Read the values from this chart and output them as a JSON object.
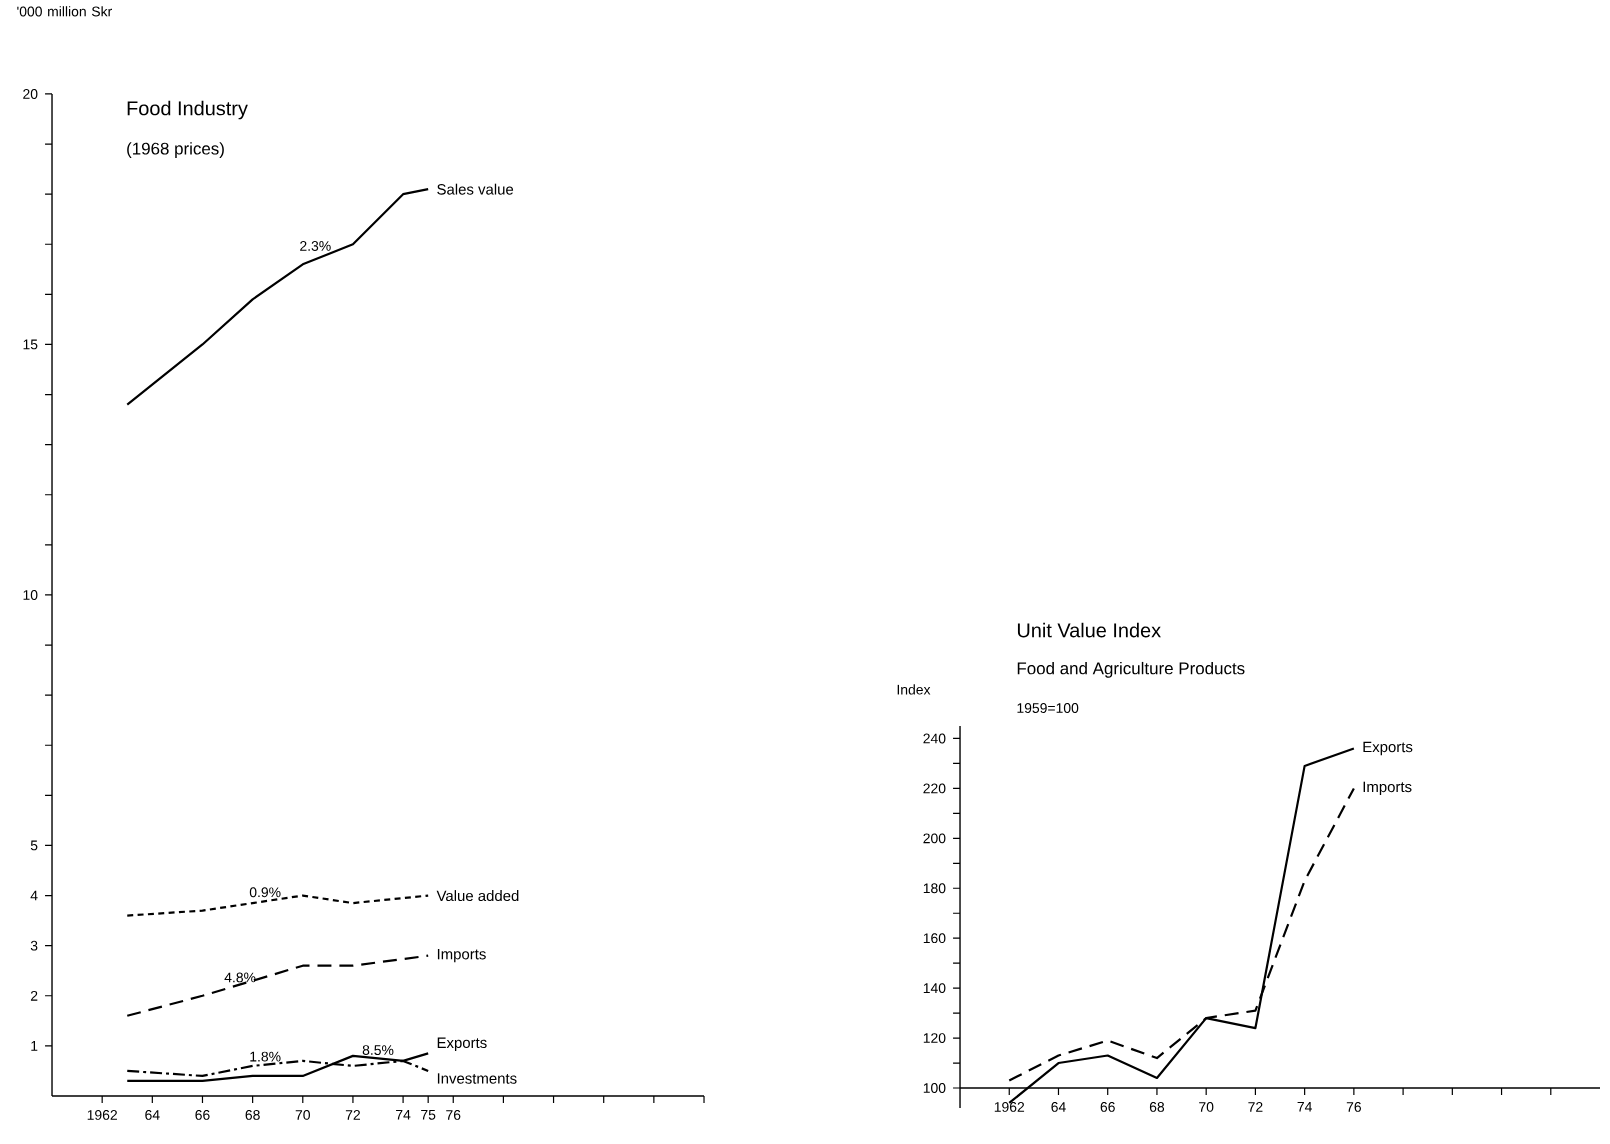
{
  "chart_data": [
    {
      "type": "line",
      "title": "Food Industry",
      "subtitle": "(1968 prices)",
      "ylabel": "'000 million Skr",
      "xlim": [
        1960,
        1986
      ],
      "ylim": [
        0,
        20
      ],
      "xticks": [
        1962,
        {
          "value": 1964,
          "label": "64"
        },
        {
          "value": 1966,
          "label": "66"
        },
        {
          "value": 1968,
          "label": "68"
        },
        {
          "value": 1970,
          "label": "70"
        },
        {
          "value": 1972,
          "label": "72"
        },
        {
          "value": 1974,
          "label": "74"
        },
        {
          "value": 1975,
          "label": "75"
        },
        {
          "value": 1976,
          "label": "76"
        },
        {
          "value": 1978,
          "label": null
        },
        {
          "value": 1980,
          "label": null
        },
        {
          "value": 1982,
          "label": null
        },
        {
          "value": 1984,
          "label": null
        },
        {
          "value": 1986,
          "label": null
        }
      ],
      "yticks": [
        1,
        2,
        3,
        4,
        5,
        {
          "value": 6,
          "label": null
        },
        {
          "value": 7,
          "label": null
        },
        {
          "value": 8,
          "label": null
        },
        {
          "value": 9,
          "label": null
        },
        10,
        {
          "value": 11,
          "label": null
        },
        {
          "value": 12,
          "label": null
        },
        {
          "value": 13,
          "label": null
        },
        {
          "value": 14,
          "label": null
        },
        15,
        {
          "value": 16,
          "label": null
        },
        {
          "value": 17,
          "label": null
        },
        {
          "value": 18,
          "label": null
        },
        {
          "value": 19,
          "label": null
        },
        20
      ],
      "series": [
        {
          "name": "Sales value",
          "color": "#000000",
          "line_style": "solid",
          "x": [
            1963,
            1966,
            1968,
            1970,
            1972,
            1974,
            1975
          ],
          "values": [
            13.8,
            15.0,
            15.9,
            16.6,
            17.0,
            18.0,
            18.1
          ]
        },
        {
          "name": "Value added",
          "color": "#000000",
          "line_style": "dotted",
          "x": [
            1963,
            1966,
            1968,
            1970,
            1972,
            1975
          ],
          "values": [
            3.6,
            3.7,
            3.85,
            4.0,
            3.85,
            4.0
          ]
        },
        {
          "name": "Imports",
          "color": "#000000",
          "line_style": "dashed",
          "x": [
            1963,
            1966,
            1968,
            1970,
            1972,
            1975
          ],
          "values": [
            1.6,
            2.0,
            2.3,
            2.6,
            2.6,
            2.8
          ]
        },
        {
          "name": "Exports",
          "color": "#000000",
          "line_style": "solid",
          "x": [
            1963,
            1966,
            1968,
            1970,
            1972,
            1974,
            1975
          ],
          "values": [
            0.3,
            0.3,
            0.4,
            0.4,
            0.8,
            0.7,
            0.85
          ]
        },
        {
          "name": "Investments",
          "color": "#000000",
          "line_style": "dashdot",
          "x": [
            1963,
            1966,
            1968,
            1970,
            1972,
            1974,
            1975
          ],
          "values": [
            0.5,
            0.4,
            0.6,
            0.7,
            0.6,
            0.7,
            0.5
          ]
        }
      ],
      "annotations": [
        {
          "text": "2.3%",
          "x": 1970.5,
          "y": 16.8
        },
        {
          "text": "0.9%",
          "x": 1968.5,
          "y": 3.9
        },
        {
          "text": "4.8%",
          "x": 1967.5,
          "y": 2.2
        },
        {
          "text": "1.8%",
          "x": 1968.5,
          "y": 0.62
        },
        {
          "text": "8.5%",
          "x": 1973,
          "y": 0.75
        }
      ]
    },
    {
      "type": "line",
      "title": "Unit Value Index",
      "subtitle": "Food and Agriculture Products",
      "ylabel": "Index",
      "xlim": [
        1960,
        1986
      ],
      "ylim": [
        92,
        245
      ],
      "xticks": [
        1962,
        {
          "value": 1964,
          "label": "64"
        },
        {
          "value": 1966,
          "label": "66"
        },
        {
          "value": 1968,
          "label": "68"
        },
        {
          "value": 1970,
          "label": "70"
        },
        {
          "value": 1972,
          "label": "72"
        },
        {
          "value": 1974,
          "label": "74"
        },
        {
          "value": 1976,
          "label": "76"
        },
        {
          "value": 1978,
          "label": null
        },
        {
          "value": 1980,
          "label": null
        },
        {
          "value": 1982,
          "label": null
        },
        {
          "value": 1984,
          "label": null
        }
      ],
      "yticks": [
        100,
        {
          "value": 110,
          "label": null
        },
        120,
        {
          "value": 130,
          "label": null
        },
        140,
        {
          "value": 150,
          "label": null
        },
        160,
        {
          "value": 170,
          "label": null
        },
        180,
        {
          "value": 190,
          "label": null
        },
        200,
        {
          "value": 210,
          "label": null
        },
        220,
        {
          "value": 230,
          "label": null
        },
        240
      ],
      "series": [
        {
          "name": "Exports",
          "color": "#000000",
          "line_style": "solid",
          "x": [
            1962,
            1964,
            1966,
            1968,
            1970,
            1972,
            1974,
            1976
          ],
          "values": [
            94,
            110,
            113,
            104,
            128,
            124,
            229,
            236
          ]
        },
        {
          "name": "Imports",
          "color": "#000000",
          "line_style": "dashed",
          "x": [
            1962,
            1964,
            1966,
            1968,
            1970,
            1972,
            1974,
            1976
          ],
          "values": [
            103,
            113,
            119,
            112,
            128,
            131,
            183,
            220
          ]
        }
      ],
      "annotations": [
        "1959=100"
      ]
    }
  ]
}
